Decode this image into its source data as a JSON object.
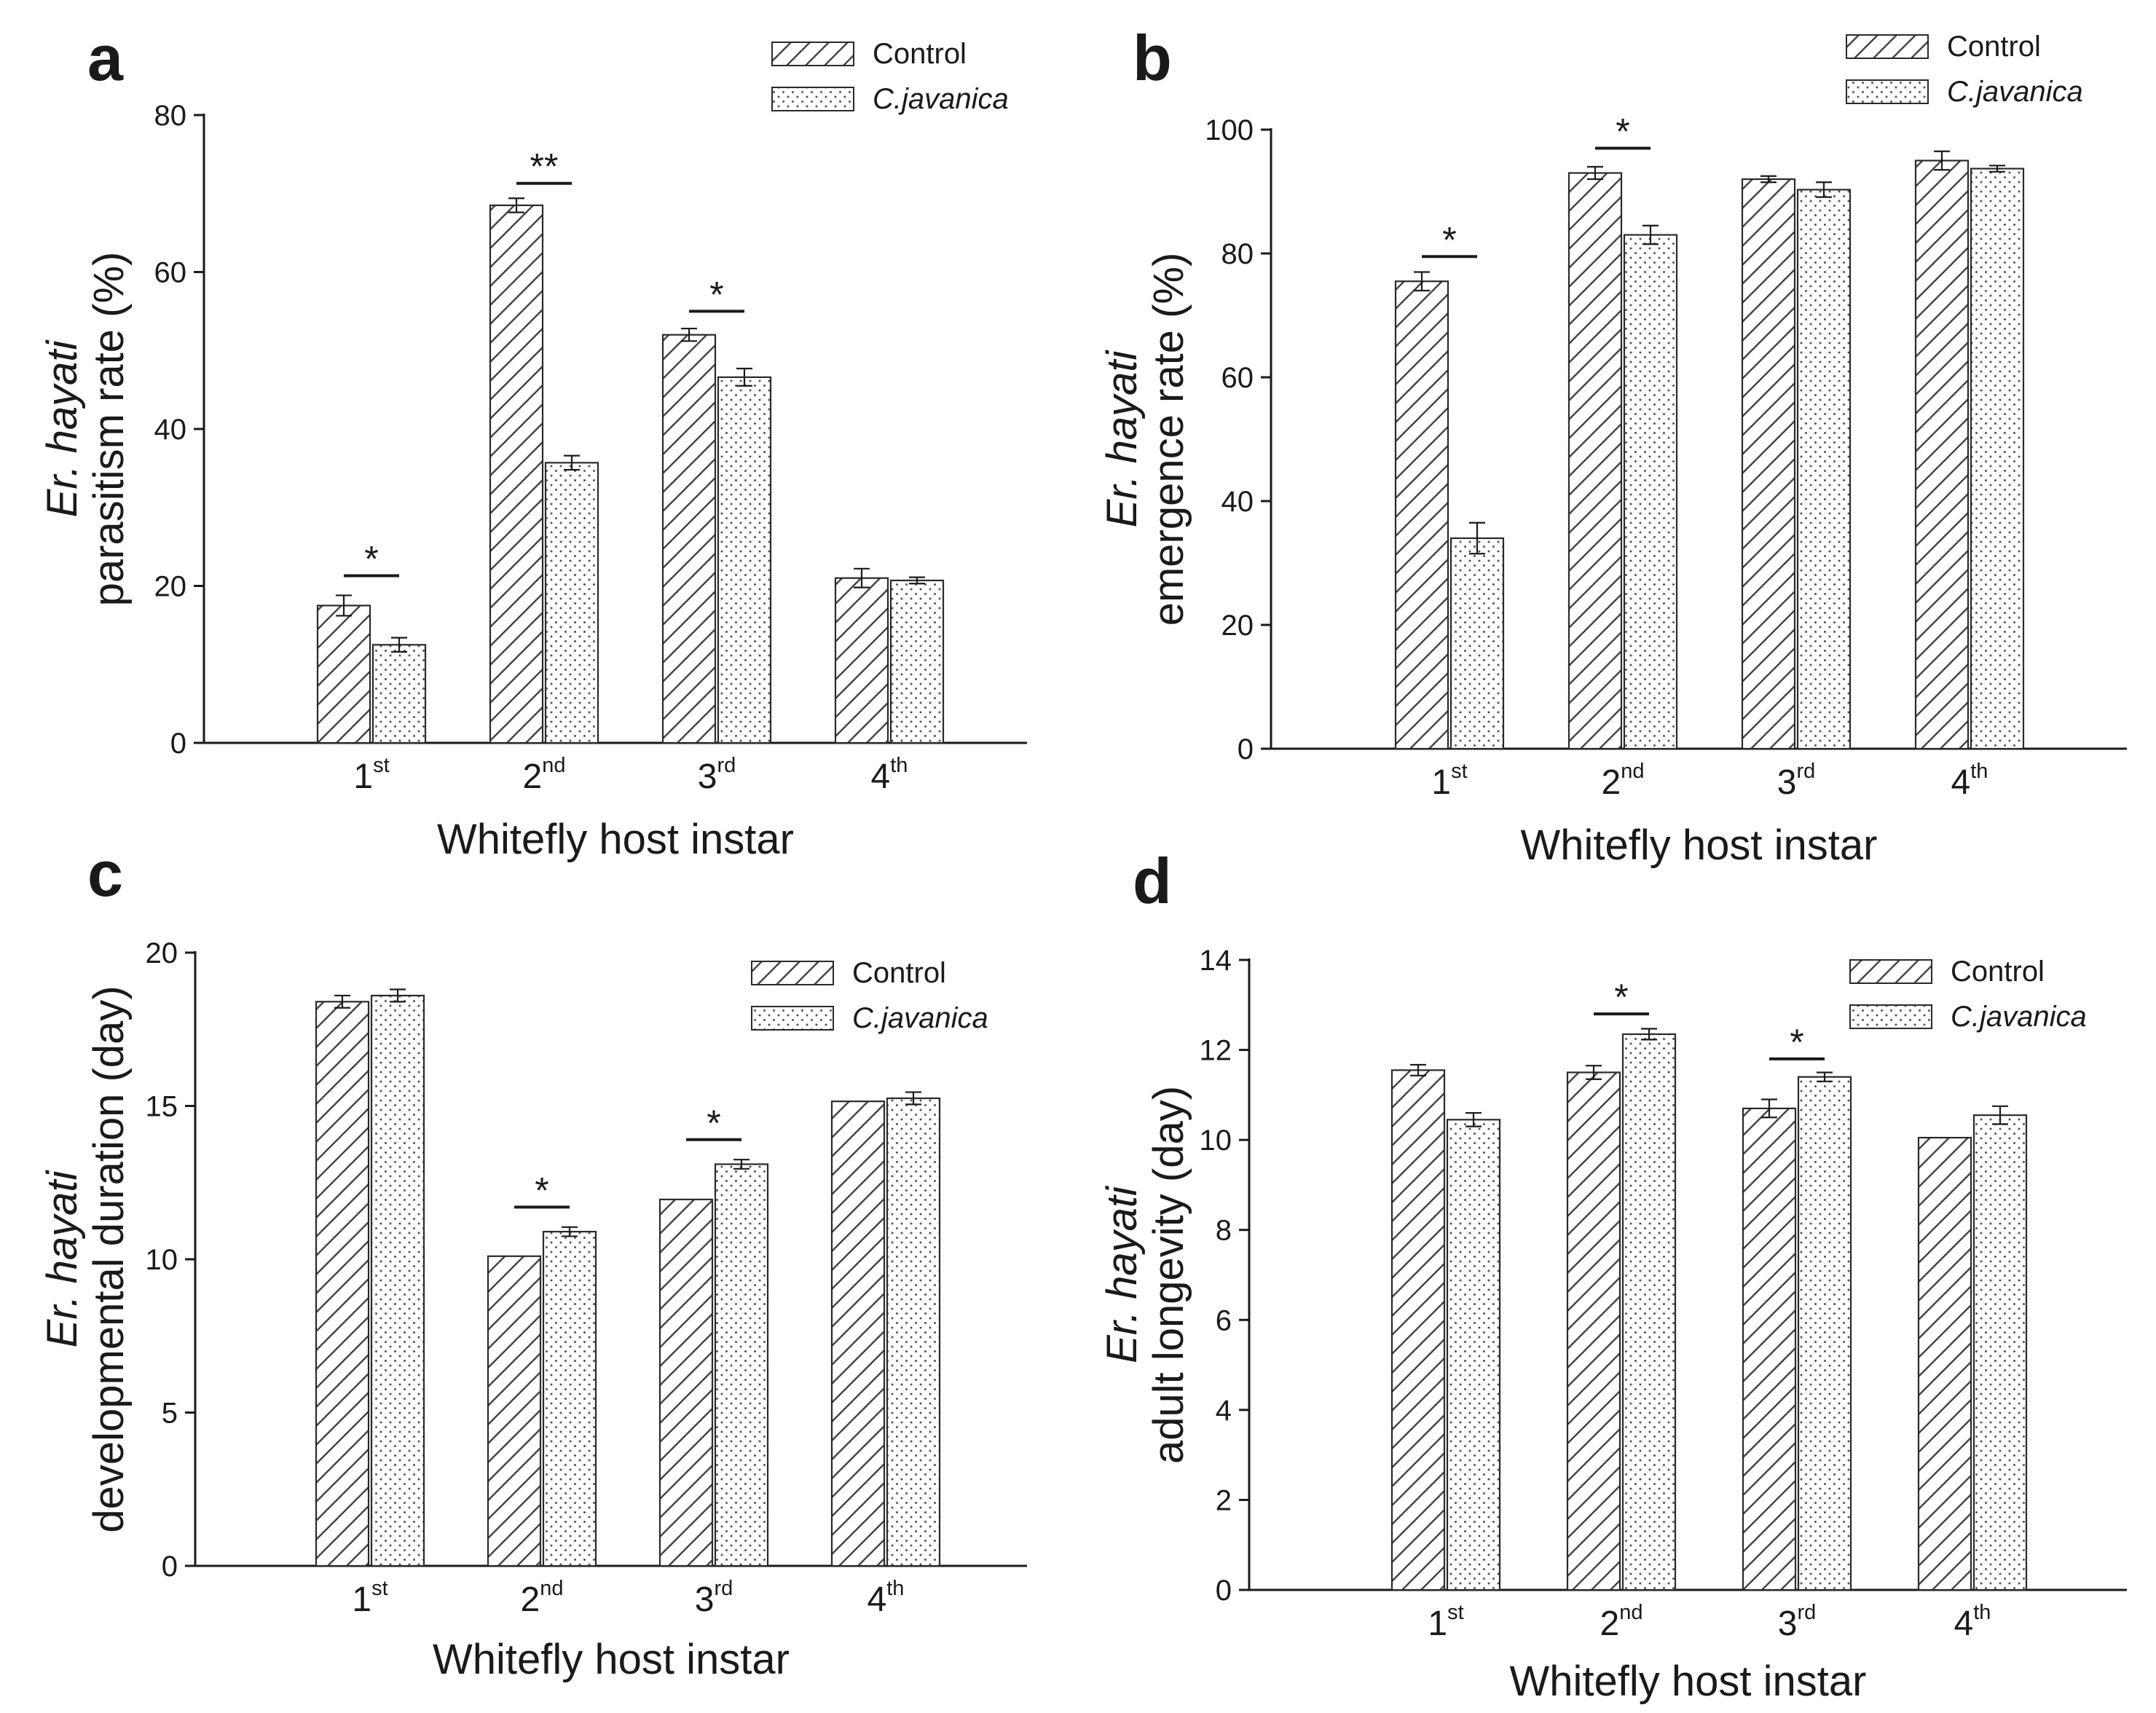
{
  "charts": [
    {
      "panel": "a",
      "chart_data": {
        "type": "bar",
        "categories": [
          {
            "main": "1",
            "sup": "st"
          },
          {
            "main": "2",
            "sup": "nd"
          },
          {
            "main": "3",
            "sup": "rd"
          },
          {
            "main": "4",
            "sup": "th"
          }
        ],
        "series": [
          {
            "name": "Control",
            "pattern": "hatch",
            "values": [
              17.5,
              68.5,
              52.0,
              21.0
            ],
            "errors": [
              1.3,
              0.9,
              0.8,
              1.2
            ]
          },
          {
            "name": "C.javanica",
            "pattern": "dots",
            "values": [
              12.5,
              35.7,
              46.6,
              20.7
            ],
            "errors": [
              0.9,
              0.9,
              1.1,
              0.4
            ]
          }
        ],
        "ylim": [
          0,
          80
        ],
        "yticks": [
          0,
          20,
          40,
          60,
          80
        ],
        "ylabel_italic": "Er. hayati",
        "ylabel": "parasitism rate (%)",
        "xlabel": "Whitefly host instar",
        "significance": [
          {
            "category": 0,
            "label": "*",
            "value": 21.3
          },
          {
            "category": 1,
            "label": "**",
            "value": 71.3
          },
          {
            "category": 2,
            "label": "*",
            "value": 55.0
          }
        ],
        "legend": "top-right",
        "grid": false
      }
    },
    {
      "panel": "b",
      "chart_data": {
        "type": "bar",
        "categories": [
          {
            "main": "1",
            "sup": "st"
          },
          {
            "main": "2",
            "sup": "nd"
          },
          {
            "main": "3",
            "sup": "rd"
          },
          {
            "main": "4",
            "sup": "th"
          }
        ],
        "series": [
          {
            "name": "Control",
            "pattern": "hatch",
            "values": [
              75.5,
              93.0,
              92.0,
              95.0
            ],
            "errors": [
              1.5,
              1.0,
              0.5,
              1.5
            ]
          },
          {
            "name": "C.javanica",
            "pattern": "dots",
            "values": [
              34.0,
              83.0,
              90.3,
              93.7
            ],
            "errors": [
              2.5,
              1.5,
              1.2,
              0.5
            ]
          }
        ],
        "ylim": [
          0,
          100
        ],
        "yticks": [
          0,
          20,
          40,
          60,
          80,
          100
        ],
        "ylabel_italic": "Er. hayati",
        "ylabel": "emergence rate (%)",
        "xlabel": "Whitefly host instar",
        "significance": [
          {
            "category": 0,
            "label": "*",
            "value": 79.5
          },
          {
            "category": 1,
            "label": "*",
            "value": 97.0
          }
        ],
        "legend": "top-right",
        "grid": false
      }
    },
    {
      "panel": "c",
      "chart_data": {
        "type": "bar",
        "categories": [
          {
            "main": "1",
            "sup": "st"
          },
          {
            "main": "2",
            "sup": "nd"
          },
          {
            "main": "3",
            "sup": "rd"
          },
          {
            "main": "4",
            "sup": "th"
          }
        ],
        "series": [
          {
            "name": "Control",
            "pattern": "hatch",
            "values": [
              18.4,
              10.1,
              11.95,
              15.15
            ],
            "errors": [
              0.2,
              0.0,
              0.0,
              0.0
            ]
          },
          {
            "name": "C.javanica",
            "pattern": "dots",
            "values": [
              18.6,
              10.9,
              13.1,
              15.25
            ],
            "errors": [
              0.2,
              0.15,
              0.15,
              0.2
            ]
          }
        ],
        "ylim": [
          0,
          20
        ],
        "yticks": [
          0,
          5,
          10,
          15,
          20
        ],
        "ylabel_italic": "Er. hayati",
        "ylabel": "developmental duration (day)",
        "xlabel": "Whitefly host instar",
        "significance": [
          {
            "category": 1,
            "label": "*",
            "value": 11.7
          },
          {
            "category": 2,
            "label": "*",
            "value": 13.9
          }
        ],
        "legend": "top-right",
        "grid": false
      }
    },
    {
      "panel": "d",
      "chart_data": {
        "type": "bar",
        "categories": [
          {
            "main": "1",
            "sup": "st"
          },
          {
            "main": "2",
            "sup": "nd"
          },
          {
            "main": "3",
            "sup": "rd"
          },
          {
            "main": "4",
            "sup": "th"
          }
        ],
        "series": [
          {
            "name": "Control",
            "pattern": "hatch",
            "values": [
              11.55,
              11.5,
              10.7,
              10.05
            ],
            "errors": [
              0.12,
              0.15,
              0.2,
              0.0
            ]
          },
          {
            "name": "C.javanica",
            "pattern": "dots",
            "values": [
              10.45,
              12.35,
              11.4,
              10.55
            ],
            "errors": [
              0.15,
              0.12,
              0.1,
              0.2
            ]
          }
        ],
        "ylim": [
          0,
          14
        ],
        "yticks": [
          0,
          2,
          4,
          6,
          8,
          10,
          12,
          14
        ],
        "ylabel_italic": "Er. hayati",
        "ylabel": "adult longevity (day)",
        "xlabel": "Whitefly host instar",
        "significance": [
          {
            "category": 1,
            "label": "*",
            "value": 12.8
          },
          {
            "category": 2,
            "label": "*",
            "value": 11.8
          }
        ],
        "legend": "top-right",
        "grid": false
      }
    }
  ]
}
